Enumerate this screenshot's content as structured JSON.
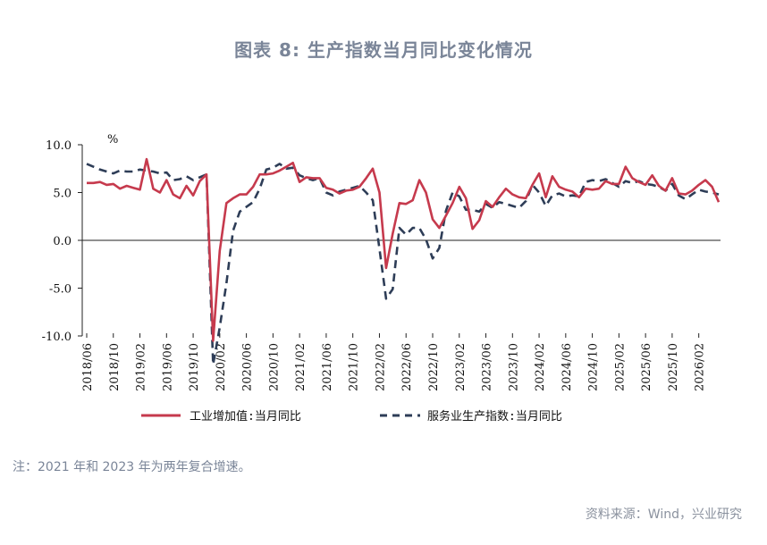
{
  "title": "图表 8:   生产指数当月同比变化情况",
  "note": "注：2021 年和 2023 年为两年复合增速。",
  "source": "资料来源：Wind，兴业研究",
  "colors": {
    "industrial": "#c63a4d",
    "services": "#2e3d57"
  },
  "chart_data": {
    "type": "line",
    "unit": "%",
    "ylim": [
      -10,
      10
    ],
    "yticks": [
      "10.0",
      "5.0",
      "0.0",
      "-5.0",
      "-10.0"
    ],
    "x_labels": [
      "2018/06",
      "2018/10",
      "2019/02",
      "2019/06",
      "2019/10",
      "2020/02",
      "2020/06",
      "2020/10",
      "2021/02",
      "2021/06",
      "2021/10",
      "2022/02",
      "2022/06",
      "2022/10",
      "2023/02",
      "2023/06",
      "2023/10",
      "2024/02",
      "2024/06",
      "2024/10",
      "2025/02",
      "2025/06",
      "2025/10",
      "2026/02"
    ],
    "x_start": "2018/06",
    "legend_position": "bottom",
    "series": [
      {
        "name": "工业增加值:当月同比",
        "values": [
          6.0,
          6.0,
          6.1,
          5.8,
          5.9,
          5.4,
          5.7,
          5.5,
          5.3,
          8.5,
          5.4,
          5.0,
          6.3,
          4.8,
          4.4,
          5.7,
          4.7,
          6.2,
          6.9,
          -10.5,
          -1.1,
          3.9,
          4.4,
          4.8,
          4.8,
          5.6,
          6.9,
          6.9,
          7.0,
          7.3,
          7.7,
          8.1,
          6.1,
          6.6,
          6.5,
          6.5,
          5.5,
          5.3,
          4.9,
          5.2,
          5.3,
          5.6,
          6.5,
          7.5,
          5.0,
          -2.9,
          0.7,
          3.9,
          3.8,
          4.2,
          6.3,
          5.0,
          2.2,
          1.3,
          2.6,
          3.9,
          5.6,
          4.4,
          1.2,
          2.1,
          4.1,
          3.5,
          4.5,
          5.4,
          4.8,
          4.5,
          4.4,
          5.8,
          7.0,
          4.5,
          6.7,
          5.6,
          5.3,
          5.1,
          4.5,
          5.4,
          5.3,
          5.4,
          6.2,
          5.9,
          5.9,
          7.7,
          6.5,
          6.1,
          5.8,
          6.8,
          5.7,
          5.2,
          6.5,
          4.9,
          4.8,
          5.2,
          5.8,
          6.3,
          5.6,
          4.0
        ]
      },
      {
        "name": "服务业生产指数:当月同比",
        "values": [
          8.0,
          7.7,
          7.4,
          7.2,
          7.0,
          7.3,
          7.2,
          7.2,
          7.4,
          7.3,
          7.2,
          7.0,
          7.1,
          6.3,
          6.4,
          6.7,
          6.3,
          6.6,
          6.9,
          -13.0,
          -9.1,
          -4.5,
          1.0,
          3.0,
          3.5,
          4.0,
          5.4,
          7.4,
          7.6,
          8.0,
          7.5,
          7.6,
          6.8,
          6.5,
          6.3,
          6.5,
          5.0,
          4.7,
          5.1,
          5.3,
          5.5,
          5.7,
          5.0,
          4.2,
          -0.9,
          -6.1,
          -5.1,
          1.3,
          0.6,
          1.3,
          1.3,
          0.1,
          -1.9,
          -0.8,
          3.1,
          5.0,
          4.6,
          3.2,
          3.2,
          3.0,
          3.8,
          3.4,
          4.0,
          3.8,
          3.6,
          3.4,
          4.1,
          5.8,
          5.0,
          3.6,
          4.7,
          4.9,
          4.6,
          4.7,
          4.6,
          6.1,
          6.3,
          6.2,
          6.4,
          6.0,
          5.6,
          6.2,
          6.0,
          6.2,
          5.9,
          5.8,
          5.6,
          5.2,
          5.9,
          4.7,
          4.3,
          4.8,
          5.3,
          5.1,
          5.0,
          4.8
        ]
      }
    ]
  }
}
